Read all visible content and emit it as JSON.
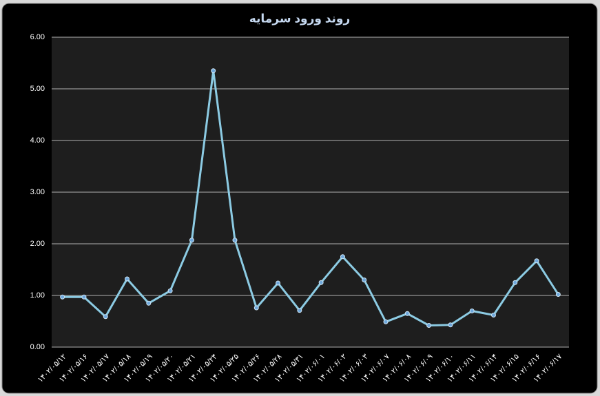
{
  "chart_data": {
    "type": "line",
    "title": "روند ورود سرمایه",
    "categories": [
      "۱۴۰۲/۰۵/۱۲",
      "۱۴۰۲/۰۵/۱۶",
      "۱۴۰۲/۰۵/۱۷",
      "۱۴۰۲/۰۵/۱۸",
      "۱۴۰۲/۰۵/۱۹",
      "۱۴۰۲/۰۵/۲۰",
      "۱۴۰۲/۰۵/۲۱",
      "۱۴۰۲/۰۵/۲۴",
      "۱۴۰۲/۰۵/۲۵",
      "۱۴۰۲/۰۵/۲۶",
      "۱۴۰۲/۰۵/۲۸",
      "۱۴۰۲/۰۵/۳۱",
      "۱۴۰۲/۰۶/۰۱",
      "۱۴۰۲/۰۶/۰۲",
      "۱۴۰۲/۰۶/۰۳",
      "۱۴۰۲/۰۶/۰۷",
      "۱۴۰۲/۰۶/۰۸",
      "۱۴۰۲/۰۶/۰۹",
      "۱۴۰۲/۰۶/۱۰",
      "۱۴۰۲/۰۶/۱۱",
      "۱۴۰۲/۰۶/۱۴",
      "۱۴۰۲/۰۶/۱۵",
      "۱۴۰۲/۰۶/۱۶",
      "۱۴۰۲/۰۶/۱۷"
    ],
    "values": [
      0.97,
      0.97,
      0.59,
      1.32,
      0.85,
      1.09,
      2.07,
      5.35,
      2.07,
      0.76,
      1.24,
      0.71,
      1.25,
      1.75,
      1.3,
      0.49,
      0.65,
      0.42,
      0.43,
      0.7,
      0.62,
      1.25,
      1.67,
      1.02
    ],
    "color": "#8ccbe3",
    "ylim": [
      0,
      6
    ],
    "yticks": [
      {
        "value": 0,
        "label": "0.00"
      },
      {
        "value": 1,
        "label": "1.00"
      },
      {
        "value": 2,
        "label": "2.00"
      },
      {
        "value": 3,
        "label": "3.00"
      },
      {
        "value": 4,
        "label": "4.00"
      },
      {
        "value": 5,
        "label": "5.00"
      },
      {
        "value": 6,
        "label": "6.00"
      }
    ],
    "grid": true
  }
}
